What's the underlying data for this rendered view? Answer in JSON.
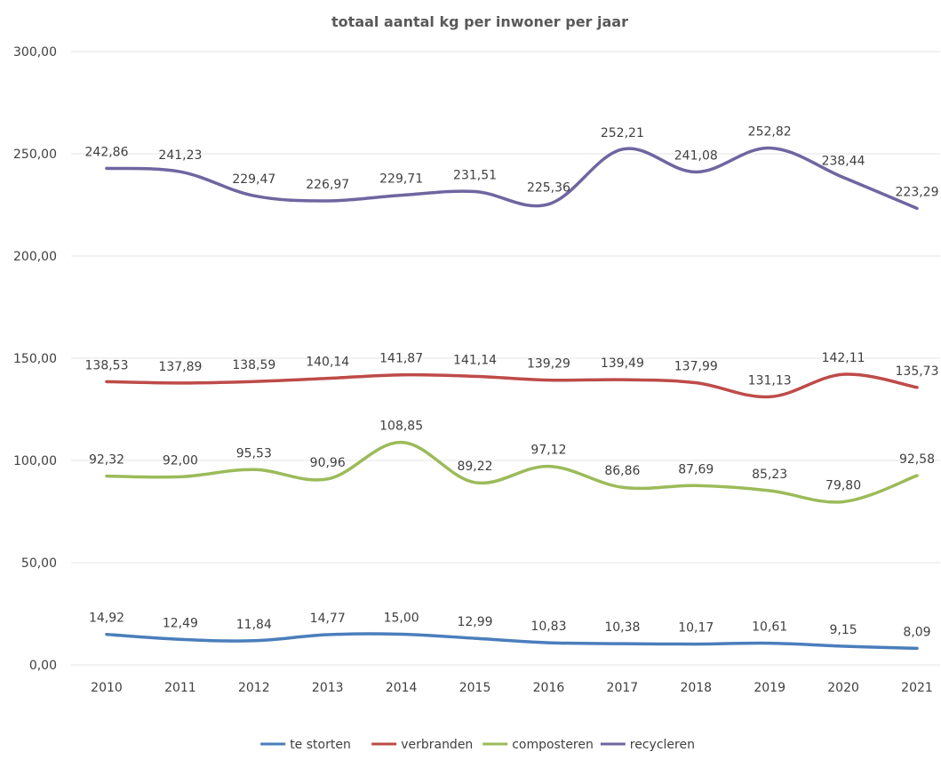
{
  "chart_data": {
    "type": "line",
    "title": "totaal aantal kg per inwoner per jaar",
    "xlabel": "",
    "ylabel": "",
    "categories": [
      "2010",
      "2011",
      "2012",
      "2013",
      "2014",
      "2015",
      "2016",
      "2017",
      "2018",
      "2019",
      "2020",
      "2021"
    ],
    "ylim": [
      0,
      300
    ],
    "yticks": [
      0,
      50,
      100,
      150,
      200,
      250,
      300
    ],
    "ytick_labels": [
      "0,00",
      "50,00",
      "100,00",
      "150,00",
      "200,00",
      "250,00",
      "300,00"
    ],
    "grid": true,
    "legend_position": "bottom",
    "smooth": true,
    "series": [
      {
        "name": "te storten",
        "color": "#4a7ebb",
        "values": [
          14.92,
          12.49,
          11.84,
          14.77,
          15.0,
          12.99,
          10.83,
          10.38,
          10.17,
          10.61,
          9.15,
          8.09
        ],
        "labels": [
          "14,92",
          "12,49",
          "11,84",
          "14,77",
          "15,00",
          "12,99",
          "10,83",
          "10,38",
          "10,17",
          "10,61",
          "9,15",
          "8,09"
        ]
      },
      {
        "name": "verbranden",
        "color": "#be4b48",
        "values": [
          138.53,
          137.89,
          138.59,
          140.14,
          141.87,
          141.14,
          139.29,
          139.49,
          137.99,
          131.13,
          142.11,
          135.73
        ],
        "labels": [
          "138,53",
          "137,89",
          "138,59",
          "140,14",
          "141,87",
          "141,14",
          "139,29",
          "139,49",
          "137,99",
          "131,13",
          "142,11",
          "135,73"
        ]
      },
      {
        "name": "composteren",
        "color": "#9bbb59",
        "values": [
          92.32,
          92.0,
          95.53,
          90.96,
          108.85,
          89.22,
          97.12,
          86.86,
          87.69,
          85.23,
          79.8,
          92.58
        ],
        "labels": [
          "92,32",
          "92,00",
          "95,53",
          "90,96",
          "108,85",
          "89,22",
          "97,12",
          "86,86",
          "87,69",
          "85,23",
          "79,80",
          "92,58"
        ]
      },
      {
        "name": "recycleren",
        "color": "#7065a0",
        "values": [
          242.86,
          241.23,
          229.47,
          226.97,
          229.71,
          231.51,
          225.36,
          252.21,
          241.08,
          252.82,
          238.44,
          223.29
        ],
        "labels": [
          "242,86",
          "241,23",
          "229,47",
          "226,97",
          "229,71",
          "231,51",
          "225,36",
          "252,21",
          "241,08",
          "252,82",
          "238,44",
          "223,29"
        ]
      }
    ]
  }
}
